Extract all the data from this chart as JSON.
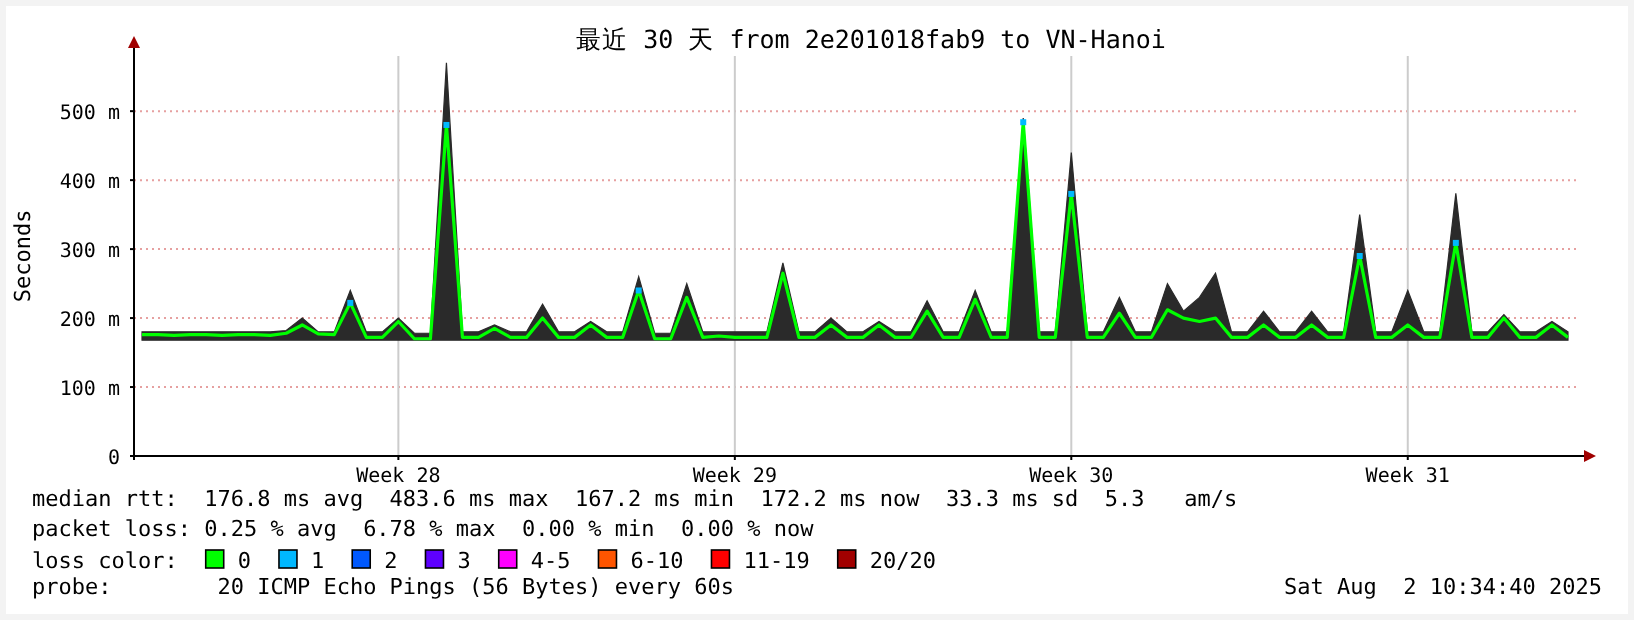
{
  "chart_data": {
    "type": "line",
    "title": "最近 30 天 from 2e201018fab9 to VN-Hanoi",
    "ylabel": "Seconds",
    "categories": [
      null,
      null,
      null,
      null,
      null,
      null,
      null,
      null,
      null,
      null,
      null,
      null,
      null,
      null,
      null,
      null,
      "Week 28",
      null,
      null,
      null,
      null,
      null,
      null,
      null,
      null,
      null,
      null,
      null,
      null,
      null,
      null,
      null,
      null,
      null,
      null,
      null,
      null,
      "Week 29",
      null,
      null,
      null,
      null,
      null,
      null,
      null,
      null,
      null,
      null,
      null,
      null,
      null,
      null,
      null,
      null,
      null,
      null,
      null,
      null,
      "Week 30",
      null,
      null,
      null,
      null,
      null,
      null,
      null,
      null,
      null,
      null,
      null,
      null,
      null,
      null,
      null,
      null,
      null,
      null,
      null,
      null,
      "Week 31",
      null,
      null,
      null,
      null,
      null,
      null,
      null,
      null,
      null,
      null
    ],
    "ylim": [
      0,
      580
    ],
    "yticks": [
      {
        "value": 0,
        "label": "0"
      },
      {
        "value": 100,
        "label": "100 m"
      },
      {
        "value": 200,
        "label": "200 m"
      },
      {
        "value": 300,
        "label": "300 m"
      },
      {
        "value": 400,
        "label": "400 m"
      },
      {
        "value": 500,
        "label": "500 m"
      }
    ],
    "grid": true,
    "legend": "bottom",
    "legend_title": "loss color:",
    "line_style": "solid",
    "series": [
      {
        "name": "0",
        "color": "#00ff00",
        "values": [
          176,
          176,
          175,
          176,
          176,
          175,
          176,
          176,
          175,
          178,
          190,
          177,
          176,
          222,
          172,
          172,
          195,
          170,
          170,
          480,
          172,
          172,
          185,
          172,
          172,
          200,
          172,
          172,
          190,
          172,
          172,
          240,
          170,
          170,
          230,
          172,
          174,
          172,
          172,
          172,
          265,
          172,
          172,
          190,
          172,
          172,
          190,
          172,
          172,
          210,
          172,
          172,
          227,
          172,
          172,
          484,
          172,
          172,
          380,
          172,
          172,
          207,
          172,
          172,
          212,
          200,
          195,
          200,
          172,
          172,
          190,
          172,
          172,
          190,
          172,
          172,
          290,
          172,
          172,
          190,
          172,
          172,
          309,
          172,
          172,
          200,
          172,
          172,
          190,
          172
        ],
        "lower": [
          168,
          168,
          168,
          168,
          168,
          168,
          168,
          168,
          168,
          168,
          168,
          168,
          168,
          168,
          168,
          168,
          168,
          168,
          168,
          168,
          168,
          168,
          168,
          168,
          168,
          168,
          168,
          168,
          168,
          168,
          168,
          168,
          168,
          168,
          168,
          168,
          168,
          168,
          168,
          168,
          168,
          168,
          168,
          168,
          168,
          168,
          168,
          168,
          168,
          168,
          168,
          168,
          168,
          168,
          168,
          168,
          168,
          168,
          168,
          168,
          168,
          168,
          168,
          168,
          168,
          168,
          168,
          168,
          168,
          168,
          168,
          168,
          168,
          168,
          168,
          168,
          168,
          168,
          168,
          168,
          168,
          168,
          168,
          168,
          168,
          168,
          168,
          168,
          168,
          168
        ],
        "upper": [
          180,
          180,
          180,
          180,
          180,
          180,
          180,
          180,
          180,
          182,
          200,
          180,
          180,
          240,
          180,
          180,
          200,
          178,
          178,
          570,
          180,
          180,
          190,
          180,
          180,
          220,
          180,
          180,
          195,
          180,
          180,
          260,
          178,
          178,
          250,
          180,
          180,
          180,
          180,
          180,
          280,
          180,
          180,
          200,
          180,
          180,
          195,
          180,
          180,
          225,
          180,
          180,
          240,
          180,
          180,
          490,
          180,
          180,
          440,
          180,
          180,
          230,
          180,
          180,
          250,
          210,
          230,
          265,
          180,
          180,
          210,
          180,
          180,
          210,
          180,
          180,
          350,
          180,
          180,
          240,
          180,
          180,
          381,
          180,
          180,
          205,
          180,
          180,
          195,
          180
        ]
      },
      {
        "name": "1",
        "color": "#00b8ff",
        "type": "scatter",
        "marker": "square",
        "values": [
          null,
          null,
          null,
          null,
          null,
          null,
          null,
          null,
          null,
          null,
          null,
          null,
          null,
          222,
          null,
          null,
          null,
          null,
          null,
          480,
          null,
          null,
          null,
          null,
          null,
          null,
          null,
          null,
          null,
          null,
          null,
          240,
          null,
          null,
          null,
          null,
          null,
          null,
          null,
          null,
          null,
          null,
          null,
          null,
          null,
          null,
          null,
          null,
          null,
          null,
          null,
          null,
          null,
          null,
          null,
          484,
          null,
          null,
          380,
          null,
          null,
          null,
          null,
          null,
          null,
          null,
          null,
          null,
          null,
          null,
          null,
          null,
          null,
          null,
          null,
          null,
          290,
          null,
          null,
          null,
          null,
          null,
          309,
          null,
          null,
          null,
          null,
          null,
          null,
          null
        ]
      },
      {
        "name": "2",
        "color": "#0059ff",
        "type": "scatter",
        "values": [
          null,
          null,
          null,
          null,
          null,
          null,
          null,
          null,
          null,
          null,
          null,
          null,
          null,
          null,
          null,
          null,
          null,
          null,
          null,
          null,
          null,
          null,
          null,
          null,
          null,
          null,
          null,
          null,
          null,
          null,
          null,
          null,
          null,
          null,
          null,
          null,
          null,
          null,
          null,
          null,
          null,
          null,
          null,
          null,
          null,
          null,
          null,
          null,
          null,
          null,
          null,
          null,
          null,
          null,
          null,
          null,
          null,
          null,
          null,
          null,
          null,
          null,
          null,
          null,
          null,
          null,
          null,
          null,
          null,
          null,
          null,
          null,
          null,
          null,
          null,
          null,
          null,
          null,
          null,
          null,
          null,
          null,
          null,
          null,
          null,
          null,
          null,
          null,
          null,
          null
        ]
      },
      {
        "name": "3",
        "color": "#5e00ff",
        "type": "scatter",
        "values": [
          null,
          null,
          null,
          null,
          null,
          null,
          null,
          null,
          null,
          null,
          null,
          null,
          null,
          null,
          null,
          null,
          null,
          null,
          null,
          null,
          null,
          null,
          null,
          null,
          null,
          null,
          null,
          null,
          null,
          null,
          null,
          null,
          null,
          null,
          null,
          null,
          null,
          null,
          null,
          null,
          null,
          null,
          null,
          null,
          null,
          null,
          null,
          null,
          null,
          null,
          null,
          null,
          null,
          null,
          null,
          null,
          null,
          null,
          null,
          null,
          null,
          null,
          null,
          null,
          null,
          null,
          null,
          null,
          null,
          null,
          null,
          null,
          null,
          null,
          null,
          null,
          null,
          null,
          null,
          null,
          null,
          null,
          null,
          null,
          null,
          null,
          null,
          null,
          null,
          null
        ]
      },
      {
        "name": "4-5",
        "color": "#ff00ff",
        "type": "scatter",
        "values": [
          null,
          null,
          null,
          null,
          null,
          null,
          null,
          null,
          null,
          null,
          null,
          null,
          null,
          null,
          null,
          null,
          null,
          null,
          null,
          null,
          null,
          null,
          null,
          null,
          null,
          null,
          null,
          null,
          null,
          null,
          null,
          null,
          null,
          null,
          null,
          null,
          null,
          null,
          null,
          null,
          null,
          null,
          null,
          null,
          null,
          null,
          null,
          null,
          null,
          null,
          null,
          null,
          null,
          null,
          null,
          null,
          null,
          null,
          null,
          null,
          null,
          null,
          null,
          null,
          null,
          null,
          null,
          null,
          null,
          null,
          null,
          null,
          null,
          null,
          null,
          null,
          null,
          null,
          null,
          null,
          null,
          null,
          null,
          null,
          null,
          null,
          null,
          null,
          null,
          null
        ]
      },
      {
        "name": "6-10",
        "color": "#ff5500",
        "type": "scatter",
        "values": [
          null,
          null,
          null,
          null,
          null,
          null,
          null,
          null,
          null,
          null,
          null,
          null,
          null,
          null,
          null,
          null,
          null,
          null,
          null,
          null,
          null,
          null,
          null,
          null,
          null,
          null,
          null,
          null,
          null,
          null,
          null,
          null,
          null,
          null,
          null,
          null,
          null,
          null,
          null,
          null,
          null,
          null,
          null,
          null,
          null,
          null,
          null,
          null,
          null,
          null,
          null,
          null,
          null,
          null,
          null,
          null,
          null,
          null,
          null,
          null,
          null,
          null,
          null,
          null,
          null,
          null,
          null,
          null,
          null,
          null,
          null,
          null,
          null,
          null,
          null,
          null,
          null,
          null,
          null,
          null,
          null,
          null,
          null,
          null,
          null,
          null,
          null,
          null,
          null,
          null
        ]
      },
      {
        "name": "11-19",
        "color": "#ff0000",
        "type": "scatter",
        "values": [
          null,
          null,
          null,
          null,
          null,
          null,
          null,
          null,
          null,
          null,
          null,
          null,
          null,
          null,
          null,
          null,
          null,
          null,
          null,
          null,
          null,
          null,
          null,
          null,
          null,
          null,
          null,
          null,
          null,
          null,
          null,
          null,
          null,
          null,
          null,
          null,
          null,
          null,
          null,
          null,
          null,
          null,
          null,
          null,
          null,
          null,
          null,
          null,
          null,
          null,
          null,
          null,
          null,
          null,
          null,
          null,
          null,
          null,
          null,
          null,
          null,
          null,
          null,
          null,
          null,
          null,
          null,
          null,
          null,
          null,
          null,
          null,
          null,
          null,
          null,
          null,
          null,
          null,
          null,
          null,
          null,
          null,
          null,
          null,
          null,
          null,
          null,
          null,
          null,
          null
        ]
      },
      {
        "name": "20/20",
        "color": "#a10000",
        "type": "scatter",
        "values": [
          null,
          null,
          null,
          null,
          null,
          null,
          null,
          null,
          null,
          null,
          null,
          null,
          null,
          null,
          null,
          null,
          null,
          null,
          null,
          null,
          null,
          null,
          null,
          null,
          null,
          null,
          null,
          null,
          null,
          null,
          null,
          null,
          null,
          null,
          null,
          null,
          null,
          null,
          null,
          null,
          null,
          null,
          null,
          null,
          null,
          null,
          null,
          null,
          null,
          null,
          null,
          null,
          null,
          null,
          null,
          null,
          null,
          null,
          null,
          null,
          null,
          null,
          null,
          null,
          null,
          null,
          null,
          null,
          null,
          null,
          null,
          null,
          null,
          null,
          null,
          null,
          null,
          null,
          null,
          null,
          null,
          null,
          null,
          null,
          null,
          null,
          null,
          null,
          null,
          null
        ]
      }
    ],
    "annotations": [
      "median rtt:  176.8 ms avg  483.6 ms max  167.2 ms min  172.2 ms now  33.3 ms sd  5.3   am/s",
      "packet loss: 0.25 % avg  6.78 % max  0.00 % min  0.00 % now",
      "probe:        20 ICMP Echo Pings (56 Bytes) every 60s",
      "Sat Aug  2 10:34:40 2025"
    ]
  }
}
